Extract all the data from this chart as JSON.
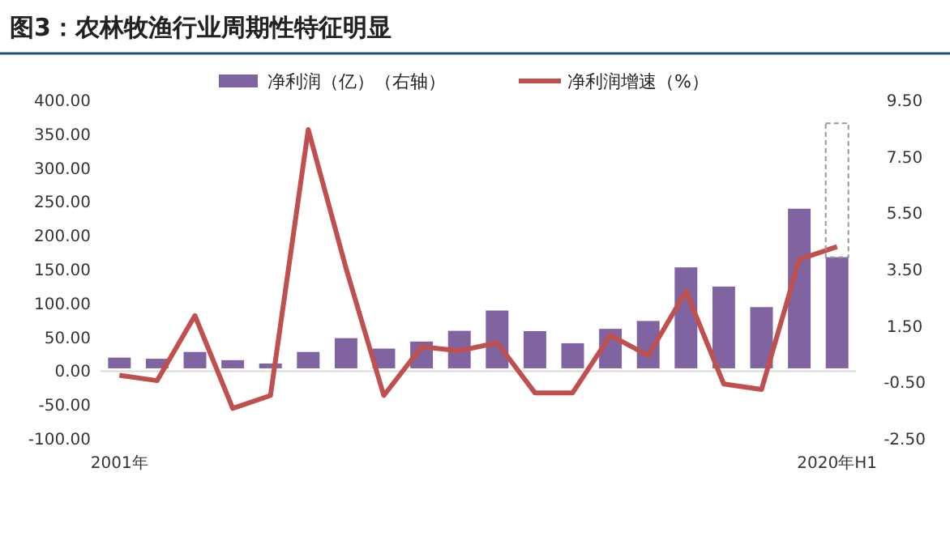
{
  "chart_data": {
    "type": "bar",
    "title": "图3：农林牧渔行业周期性特征明显",
    "categories": [
      "2001年",
      null,
      null,
      null,
      null,
      null,
      null,
      null,
      null,
      null,
      null,
      null,
      null,
      null,
      null,
      null,
      null,
      null,
      null,
      "2020年H1"
    ],
    "series": [
      {
        "name": "净利润（亿）（右轴）",
        "axis": "y2",
        "color": "#8064a2",
        "values": [
          0.38,
          0.34,
          0.58,
          0.29,
          0.17,
          0.58,
          1.07,
          0.7,
          0.95,
          1.33,
          2.05,
          1.32,
          0.89,
          1.4,
          1.68,
          3.58,
          2.9,
          2.17,
          5.66,
          3.94
        ]
      },
      {
        "name": "净利润增速（%）",
        "type": "line",
        "color": "#c0504d",
        "values": [
          -6,
          -14,
          82,
          -55,
          -36,
          357,
          152,
          -36,
          36,
          30,
          42,
          -32,
          -32,
          53,
          23,
          118,
          -19,
          -27,
          165,
          184
        ]
      }
    ],
    "ylim": [
      -100,
      400
    ],
    "yticks": [
      {
        "value": -100,
        "label": "-100.00"
      },
      {
        "value": -50,
        "label": "-50.00"
      },
      {
        "value": 0,
        "label": "0.00"
      },
      {
        "value": 50,
        "label": "50.00"
      },
      {
        "value": 100,
        "label": "100.00"
      },
      {
        "value": 150,
        "label": "150.00"
      },
      {
        "value": 200,
        "label": "200.00"
      },
      {
        "value": 250,
        "label": "250.00"
      },
      {
        "value": 300,
        "label": "300.00"
      },
      {
        "value": 350,
        "label": "350.00"
      },
      {
        "value": 400,
        "label": "400.00"
      }
    ],
    "y2lim": [
      -2.5,
      9.5
    ],
    "y2ticks": [
      {
        "value": -2.5,
        "label": "-2.50"
      },
      {
        "value": -0.5,
        "label": "-0.50"
      },
      {
        "value": 1.5,
        "label": "1.50"
      },
      {
        "value": 3.5,
        "label": "3.50"
      },
      {
        "value": 5.5,
        "label": "5.50"
      },
      {
        "value": 7.5,
        "label": "7.50"
      },
      {
        "value": 9.5,
        "label": "9.50"
      }
    ],
    "legend": "top",
    "marker": "none",
    "line_style": "solid"
  }
}
